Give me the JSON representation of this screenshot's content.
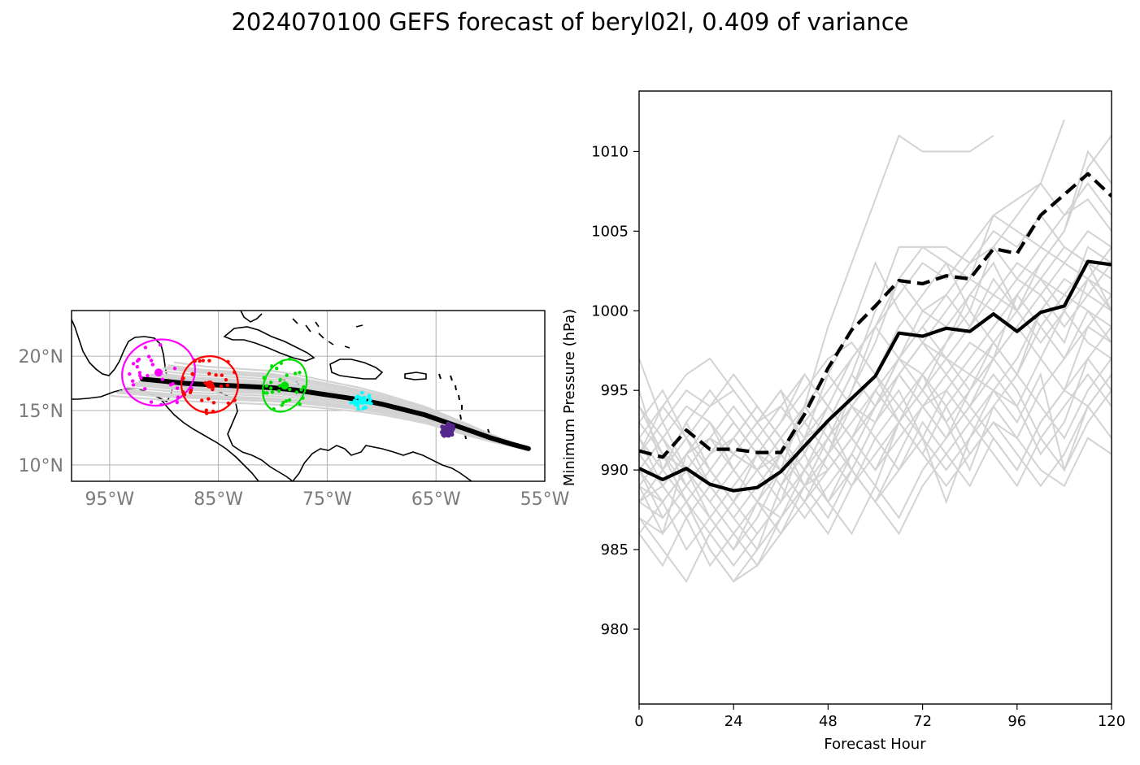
{
  "title": "2024070100 GEFS forecast of beryl02l, 0.409 of variance",
  "chart_data": [
    {
      "type": "map",
      "lon_ticks": [
        "95°W",
        "85°W",
        "75°W",
        "65°W",
        "55°W"
      ],
      "lat_ticks": [
        "20°N",
        "15°N",
        "10°N"
      ],
      "xlim": [
        -98.5,
        -55
      ],
      "ylim": [
        8.5,
        24.2
      ],
      "colors": {
        "grid": "#b0b0b0",
        "coast": "#000000",
        "tracks": "#d3d3d3",
        "mean_track": "#000000"
      },
      "mean_track": {
        "lon": [
          -92,
          -90,
          -88,
          -86,
          -84,
          -82,
          -80,
          -78,
          -76,
          -74,
          -72,
          -70,
          -68,
          -66,
          -64,
          -62,
          -60,
          -58,
          -56.5
        ],
        "lat": [
          17.9,
          17.7,
          17.5,
          17.4,
          17.3,
          17.2,
          17.1,
          16.9,
          16.6,
          16.3,
          16.0,
          15.6,
          15.1,
          14.6,
          13.9,
          13.2,
          12.5,
          11.9,
          11.5
        ]
      },
      "clusters": [
        {
          "color": "#ff00ff",
          "center": [
            -90.5,
            18.5
          ],
          "radius": [
            3.4,
            3.0
          ],
          "angle": -20
        },
        {
          "color": "#ff0000",
          "center": [
            -85.8,
            17.4
          ],
          "radius": [
            2.6,
            2.6
          ],
          "angle": 0
        },
        {
          "color": "#00e000",
          "center": [
            -78.9,
            17.3
          ],
          "radius": [
            1.9,
            2.5
          ],
          "angle": 25
        },
        {
          "color": "#00ffff",
          "center": [
            -71.8,
            15.9
          ],
          "radius": [
            1.0,
            0.8
          ],
          "angle": 0
        },
        {
          "color": "#55278c",
          "center": [
            -63.9,
            13.2
          ],
          "radius": [
            0.6,
            0.6
          ],
          "angle": 0
        }
      ]
    },
    {
      "type": "line",
      "xlabel": "Forecast Hour",
      "ylabel": "Minimum Pressure (hPa)",
      "xlim": [
        0,
        120
      ],
      "ylim": [
        975.3,
        1013.8
      ],
      "xticks": [
        0,
        24,
        48,
        72,
        96,
        120
      ],
      "yticks": [
        980,
        985,
        990,
        995,
        1000,
        1005,
        1010
      ],
      "x": [
        0,
        6,
        12,
        18,
        24,
        30,
        36,
        42,
        48,
        54,
        60,
        66,
        72,
        78,
        84,
        90,
        96,
        102,
        108,
        114,
        120
      ],
      "series": [
        {
          "style": "solid",
          "values": [
            990.1,
            989.4,
            990.1,
            989.1,
            988.7,
            988.9,
            989.9,
            991.5,
            993.1,
            994.5,
            995.9,
            998.6,
            998.4,
            998.9,
            998.7,
            999.8,
            998.7,
            999.9,
            1000.3,
            1003.1,
            1002.9
          ]
        },
        {
          "style": "dashed",
          "values": [
            991.2,
            990.8,
            992.5,
            991.3,
            991.3,
            991.1,
            991.1,
            993.5,
            996.4,
            998.8,
            1000.3,
            1001.9,
            1001.7,
            1002.2,
            1002.0,
            1003.9,
            1003.6,
            1006.0,
            1007.3,
            1008.6,
            1007.2
          ]
        }
      ],
      "members": [
        [
          989,
          986,
          991,
          992,
          991,
          990,
          988,
          990,
          993,
          996,
          1000,
          1004,
          1004,
          1004,
          1003,
          1004,
          1002,
          1004,
          1003,
          1005,
          1004
        ],
        [
          990,
          992,
          994,
          993,
          990,
          988,
          986,
          988,
          991,
          995,
          998,
          1002,
          1000,
          1001,
          999,
          1002,
          1000,
          1003,
          1005,
          1010,
          1008
        ],
        [
          992,
          990,
          988,
          986,
          984,
          986,
          988,
          992,
          996,
          999,
          1003,
          1000,
          998,
          997,
          995,
          998,
          996,
          1000,
          998,
          1002,
          1001
        ],
        [
          988,
          987,
          989,
          991,
          992,
          990,
          991,
          994,
          999,
          1003,
          1007,
          1011,
          1010,
          1010,
          1010,
          1011,
          null,
          null,
          null,
          null,
          null
        ],
        [
          994,
          991,
          988,
          985,
          983,
          985,
          987,
          989,
          990,
          992,
          994,
          996,
          994,
          995,
          997,
          999,
          1001,
          1003,
          1005,
          1009,
          1011
        ],
        [
          991,
          993,
          995,
          994,
          996,
          994,
          992,
          990,
          988,
          990,
          993,
          995,
          992,
          988,
          992,
          995,
          993,
          996,
          990,
          994,
          996
        ],
        [
          987,
          985,
          983,
          986,
          988,
          991,
          993,
          995,
          997,
          998,
          996,
          999,
          1001,
          1003,
          1000,
          1004,
          1006,
          1008,
          1012,
          null,
          null
        ],
        [
          993,
          995,
          992,
          989,
          991,
          993,
          995,
          991,
          988,
          986,
          989,
          993,
          995,
          998,
          1001,
          1003,
          1000,
          1002,
          1004,
          1003,
          1002
        ],
        [
          989,
          988,
          990,
          992,
          990,
          988,
          987,
          989,
          992,
          995,
          999,
          1002,
          1004,
          1003,
          1002,
          1006,
          1007,
          1008,
          1006,
          1007,
          1005
        ],
        [
          986,
          984,
          987,
          989,
          987,
          985,
          989,
          992,
          994,
          992,
          990,
          993,
          996,
          994,
          991,
          993,
          992,
          995,
          997,
          999,
          998
        ],
        [
          995,
          990,
          992,
          994,
          995,
          993,
          991,
          993,
          995,
          997,
          999,
          997,
          996,
          998,
          1000,
          998,
          996,
          999,
          1001,
          1003,
          1000
        ],
        [
          990,
          992,
          989,
          987,
          985,
          987,
          990,
          994,
          996,
          994,
          992,
          990,
          993,
          991,
          989,
          992,
          990,
          993,
          995,
          997,
          995
        ],
        [
          988,
          990,
          993,
          990,
          988,
          990,
          992,
          989,
          987,
          990,
          993,
          996,
          998,
          1000,
          1002,
          1001,
          1000,
          1002,
          1001,
          1000,
          999
        ],
        [
          992,
          989,
          987,
          984,
          986,
          988,
          990,
          992,
          993,
          996,
          994,
          997,
          999,
          1001,
          1003,
          1005,
          1004,
          1006,
          1004,
          1003,
          1002
        ],
        [
          987,
          986,
          988,
          985,
          983,
          984,
          986,
          989,
          991,
          994,
          996,
          993,
          991,
          994,
          996,
          995,
          997,
          1000,
          1002,
          1001,
          1003
        ],
        [
          991,
          994,
          996,
          997,
          995,
          993,
          994,
          992,
          990,
          992,
          995,
          997,
          999,
          997,
          999,
          1001,
          1003,
          1002,
          1000,
          1004,
          1003
        ],
        [
          989,
          991,
          990,
          988,
          986,
          984,
          987,
          990,
          993,
          990,
          988,
          991,
          994,
          996,
          998,
          997,
          999,
          1001,
          999,
          1001,
          1000
        ],
        [
          993,
          991,
          989,
          991,
          993,
          991,
          989,
          991,
          994,
          997,
          999,
          1001,
          1003,
          1002,
          1004,
          1006,
          1005,
          1004,
          1006,
          1008,
          1006
        ],
        [
          988,
          989,
          991,
          993,
          991,
          990,
          992,
          994,
          992,
          990,
          988,
          990,
          992,
          995,
          993,
          995,
          994,
          997,
          1000,
          998,
          997
        ],
        [
          990,
          988,
          985,
          987,
          989,
          991,
          990,
          988,
          990,
          992,
          994,
          997,
          1000,
          999,
          1001,
          1000,
          1002,
          1001,
          1003,
          1002,
          1004
        ],
        [
          997,
          993,
          990,
          992,
          994,
          992,
          990,
          988,
          986,
          989,
          992,
          994,
          996,
          993,
          990,
          994,
          992,
          990,
          989,
          992,
          991
        ],
        [
          986,
          988,
          990,
          987,
          985,
          988,
          991,
          989,
          992,
          994,
          993,
          996,
          998,
          996,
          994,
          997,
          995,
          992,
          994,
          996,
          994
        ],
        [
          992,
          990,
          993,
          995,
          993,
          991,
          993,
          996,
          994,
          992,
          994,
          996,
          994,
          992,
          994,
          996,
          994,
          991,
          993,
          997,
          999
        ],
        [
          989,
          991,
          988,
          990,
          992,
          994,
          992,
          990,
          988,
          991,
          994,
          997,
          995,
          993,
          995,
          997,
          999,
          997,
          995,
          999,
          1001
        ],
        [
          991,
          989,
          991,
          989,
          987,
          989,
          991,
          993,
          991,
          989,
          991,
          993,
          995,
          997,
          996,
          998,
          1000,
          998,
          1000,
          1002,
          1000
        ],
        [
          990,
          987,
          989,
          991,
          993,
          991,
          989,
          987,
          989,
          991,
          989,
          987,
          990,
          992,
          994,
          992,
          990,
          993,
          995,
          994,
          992
        ],
        [
          994,
          992,
          990,
          988,
          990,
          992,
          994,
          996,
          994,
          992,
          990,
          992,
          994,
          992,
          995,
          997,
          1001,
          999,
          997,
          1000,
          998
        ],
        [
          988,
          990,
          992,
          990,
          988,
          986,
          988,
          990,
          992,
          990,
          988,
          986,
          989,
          991,
          993,
          991,
          989,
          992,
          990,
          993,
          995
        ],
        [
          992,
          994,
          992,
          990,
          992,
          994,
          992,
          990,
          992,
          994,
          996,
          994,
          992,
          990,
          992,
          994,
          996,
          994,
          992,
          995,
          997
        ],
        [
          991,
          989,
          987,
          989,
          991,
          993,
          995,
          993,
          991,
          993,
          995,
          993,
          991,
          989,
          991,
          993,
          991,
          989,
          991,
          994,
          996
        ]
      ]
    }
  ]
}
